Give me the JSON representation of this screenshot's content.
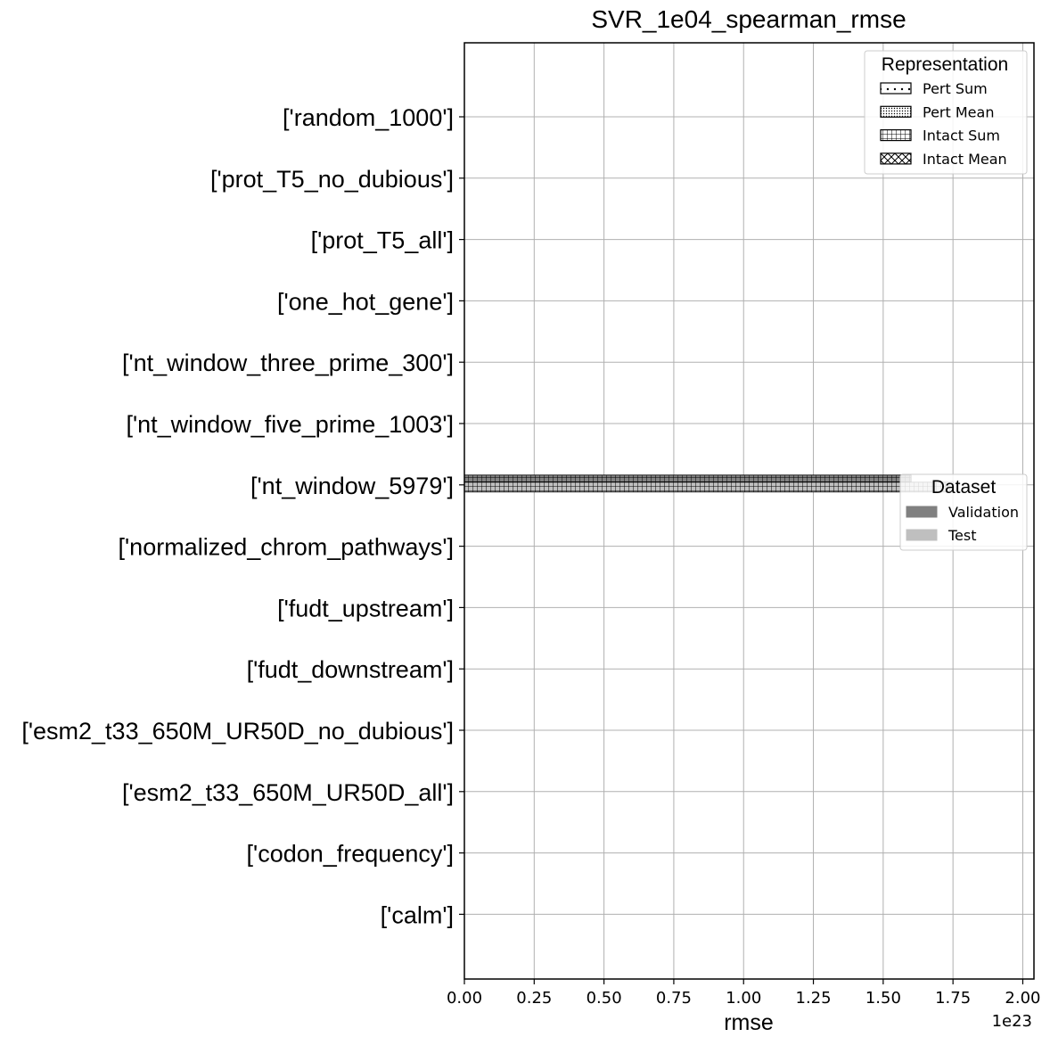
{
  "chart_data": {
    "type": "bar",
    "orientation": "horizontal",
    "title": "SVR_1e04_spearman_rmse",
    "xlabel": "rmse",
    "ylabel": "",
    "x_offset_text": "1e23",
    "xlim": [
      0,
      2.04
    ],
    "x_ticks": [
      "0.00",
      "0.25",
      "0.50",
      "0.75",
      "1.00",
      "1.25",
      "1.50",
      "1.75",
      "2.00"
    ],
    "x_tick_values": [
      0,
      0.25,
      0.5,
      0.75,
      1.0,
      1.25,
      1.5,
      1.75,
      2.0
    ],
    "categories": [
      "['random_1000']",
      "['prot_T5_no_dubious']",
      "['prot_T5_all']",
      "['one_hot_gene']",
      "['nt_window_three_prime_300']",
      "['nt_window_five_prime_1003']",
      "['nt_window_5979']",
      "['normalized_chrom_pathways']",
      "['fudt_upstream']",
      "['fudt_downstream']",
      "['esm2_t33_650M_UR50D_no_dubious']",
      "['esm2_t33_650M_UR50D_all']",
      "['codon_frequency']",
      "['calm']"
    ],
    "bars": [
      {
        "category": "['nt_window_5979']",
        "representation": "Intact Sum",
        "dataset": "Validation",
        "value": 1.6
      },
      {
        "category": "['nt_window_5979']",
        "representation": "Intact Sum",
        "dataset": "Test",
        "value": 1.75
      }
    ],
    "grid": true,
    "legend_representation": {
      "title": "Representation",
      "placement": "top-right",
      "items": [
        {
          "label": "Pert Sum",
          "pattern": "dots"
        },
        {
          "label": "Pert Mean",
          "pattern": "dense-dots"
        },
        {
          "label": "Intact Sum",
          "pattern": "grid"
        },
        {
          "label": "Intact Mean",
          "pattern": "cross"
        }
      ]
    },
    "legend_dataset": {
      "title": "Dataset",
      "placement": "center-right",
      "items": [
        {
          "label": "Validation",
          "color": "#808080"
        },
        {
          "label": "Test",
          "color": "#bfbfbf"
        }
      ]
    }
  }
}
